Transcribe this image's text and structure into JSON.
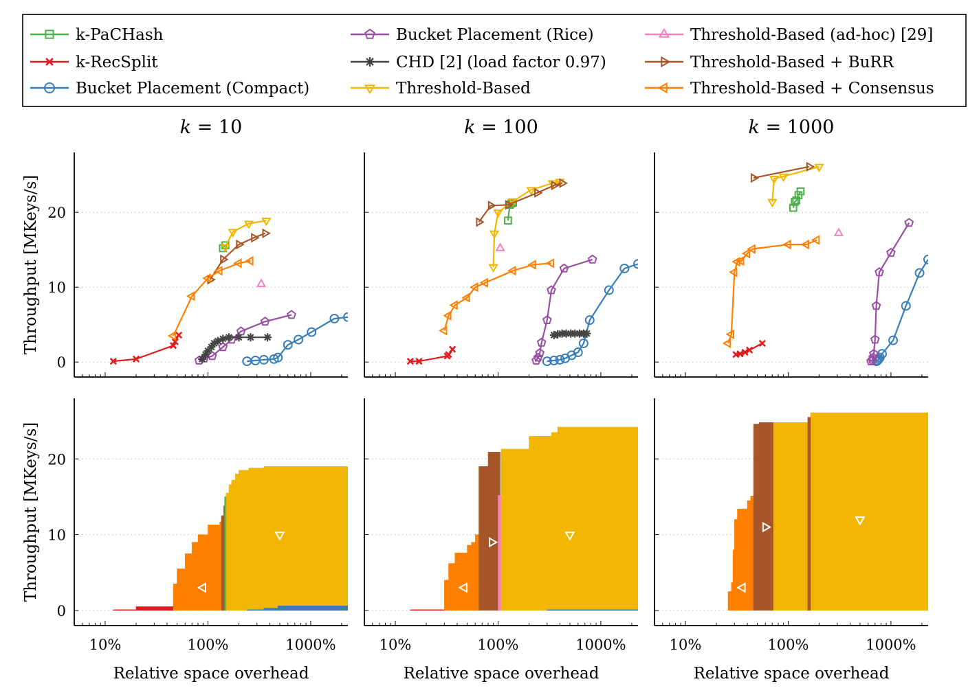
{
  "legend": {
    "entries": [
      {
        "label": "k-PaCHash",
        "marker": "square",
        "color": "#4daf4a"
      },
      {
        "label": "k-RecSplit",
        "marker": "cross",
        "color": "#e41a1c"
      },
      {
        "label": "Bucket Placement (Compact)",
        "marker": "circle",
        "color": "#377eb8"
      },
      {
        "label": "Bucket Placement (Rice)",
        "marker": "pentagon",
        "color": "#984ea3"
      },
      {
        "label": "CHD [2] (load factor 0.97)",
        "marker": "star",
        "color": "#444444"
      },
      {
        "label": "Threshold-Based",
        "marker": "triangle-down",
        "color": "#f2b600"
      },
      {
        "label": "Threshold-Based (ad-hoc) [29]",
        "marker": "triangle-up",
        "color": "#f781bf"
      },
      {
        "label": "Threshold-Based + BuRR",
        "marker": "triangle-right",
        "color": "#a65628"
      },
      {
        "label": "Threshold-Based + Consensus",
        "marker": "triangle-left",
        "color": "#ff7f00"
      }
    ]
  },
  "columns": [
    {
      "k_label": "k",
      "k_value": "= 10"
    },
    {
      "k_label": "k",
      "k_value": "= 100"
    },
    {
      "k_label": "k",
      "k_value": "= 1000"
    }
  ],
  "axes": {
    "ylabel": "Throughput [MKeys/s]",
    "xlabel": "Relative space overhead",
    "xticks": [
      "10%",
      "100%",
      "1000%"
    ],
    "yticks": [
      "0",
      "10",
      "20"
    ],
    "xscale": "log",
    "xlim_percent": [
      5,
      2300
    ],
    "ylim": [
      -2,
      28
    ],
    "grid": "horizontal dotted"
  },
  "chart_data": [
    {
      "type": "line",
      "title": "k = 10",
      "xlabel": "",
      "ylabel": "Throughput [MKeys/s]",
      "series": [
        {
          "name": "k-RecSplit",
          "x": [
            12,
            20,
            46,
            48,
            52
          ],
          "y": [
            0.1,
            0.4,
            2.2,
            2.7,
            3.6
          ]
        },
        {
          "name": "Bucket Placement (Compact)",
          "x": [
            240,
            290,
            350,
            440,
            480,
            600,
            760,
            1020,
            1700,
            2300
          ],
          "y": [
            0.1,
            0.2,
            0.3,
            0.4,
            0.6,
            2.3,
            3.0,
            4.0,
            5.8,
            6.0
          ]
        },
        {
          "name": "Bucket Placement (Rice)",
          "x": [
            82,
            92,
            110,
            140,
            170,
            210,
            360,
            650
          ],
          "y": [
            0.2,
            0.5,
            0.8,
            2.0,
            3.0,
            4.1,
            5.4,
            6.3
          ]
        },
        {
          "name": "CHD [2] (load factor 0.97)",
          "x": [
            88,
            95,
            100,
            108,
            115,
            125,
            140,
            160,
            200,
            260,
            380
          ],
          "y": [
            0.4,
            1.0,
            1.5,
            2.0,
            2.5,
            2.8,
            3.1,
            3.3,
            3.3,
            3.3,
            3.3
          ]
        },
        {
          "name": "k-PaCHash",
          "x": [
            140,
            148
          ],
          "y": [
            15.2,
            15.6
          ]
        },
        {
          "name": "Threshold-Based",
          "x": [
            148,
            175,
            250,
            370
          ],
          "y": [
            15.4,
            17.4,
            18.5,
            18.9
          ]
        },
        {
          "name": "Threshold-Based (ad-hoc) [29]",
          "x": [
            330
          ],
          "y": [
            10.4
          ]
        },
        {
          "name": "Threshold-Based + BuRR",
          "x": [
            105,
            140,
            200,
            280,
            360
          ],
          "y": [
            11.0,
            13.7,
            15.7,
            16.6,
            17.2
          ]
        },
        {
          "name": "Threshold-Based + Consensus",
          "x": [
            46,
            70,
            100,
            130,
            200,
            260
          ],
          "y": [
            3.5,
            8.8,
            11.2,
            12.2,
            13.2,
            13.5
          ]
        }
      ]
    },
    {
      "type": "line",
      "title": "k = 100",
      "xlabel": "",
      "ylabel": "Throughput [MKeys/s]",
      "series": [
        {
          "name": "k-RecSplit",
          "x": [
            14,
            17,
            32,
            33,
            36
          ],
          "y": [
            0.1,
            0.1,
            0.8,
            1.0,
            1.7
          ]
        },
        {
          "name": "Bucket Placement (Compact)",
          "x": [
            300,
            350,
            400,
            450,
            520,
            600,
            680,
            780,
            1200,
            1700,
            2300
          ],
          "y": [
            0.1,
            0.2,
            0.3,
            0.5,
            0.9,
            1.3,
            2.5,
            5.6,
            9.6,
            12.5,
            13.1
          ]
        },
        {
          "name": "Bucket Placement (Rice)",
          "x": [
            235,
            245,
            255,
            265,
            300,
            330,
            440,
            830
          ],
          "y": [
            0.2,
            0.6,
            1.2,
            2.6,
            5.6,
            9.6,
            12.5,
            13.7
          ]
        },
        {
          "name": "CHD [2] (load factor 0.97)",
          "x": [
            350,
            380,
            420,
            460,
            510,
            560,
            620,
            680,
            730
          ],
          "y": [
            3.6,
            3.7,
            3.8,
            3.8,
            3.8,
            3.8,
            3.8,
            3.8,
            3.8
          ]
        },
        {
          "name": "k-PaCHash",
          "x": [
            125,
            130,
            135,
            140
          ],
          "y": [
            18.9,
            21.0,
            21.2,
            21.3
          ]
        },
        {
          "name": "Threshold-Based",
          "x": [
            90,
            92,
            100,
            140,
            210,
            340,
            400
          ],
          "y": [
            12.7,
            17.2,
            20.0,
            21.5,
            23.0,
            23.9,
            24.1
          ]
        },
        {
          "name": "Threshold-Based (ad-hoc) [29]",
          "x": [
            105
          ],
          "y": [
            15.2
          ]
        },
        {
          "name": "Threshold-Based + BuRR",
          "x": [
            65,
            85,
            125,
            240,
            350,
            420
          ],
          "y": [
            18.7,
            20.9,
            21.0,
            22.6,
            23.6,
            23.9
          ]
        },
        {
          "name": "Threshold-Based + Consensus",
          "x": [
            30,
            33,
            38,
            50,
            60,
            75,
            140,
            220,
            330
          ],
          "y": [
            4.2,
            6.2,
            7.6,
            8.6,
            10.0,
            10.6,
            12.2,
            13.0,
            13.2
          ]
        }
      ]
    },
    {
      "type": "line",
      "title": "k = 1000",
      "xlabel": "",
      "ylabel": "Throughput [MKeys/s]",
      "series": [
        {
          "name": "k-RecSplit",
          "x": [
            31,
            34,
            38,
            42,
            56
          ],
          "y": [
            1.0,
            1.1,
            1.3,
            1.6,
            2.5
          ]
        },
        {
          "name": "Bucket Placement (Compact)",
          "x": [
            720,
            740,
            760,
            780,
            820,
            1050,
            1400,
            1900,
            2300
          ],
          "y": [
            0.1,
            0.2,
            0.4,
            0.6,
            1.1,
            2.9,
            7.5,
            11.9,
            13.7
          ]
        },
        {
          "name": "Bucket Placement (Rice)",
          "x": [
            640,
            660,
            670,
            680,
            700,
            720,
            770,
            1000,
            1500
          ],
          "y": [
            0.1,
            0.3,
            0.6,
            1.1,
            3.0,
            7.5,
            12.0,
            14.6,
            18.6
          ]
        },
        {
          "name": "k-PaCHash",
          "x": [
            112,
            116,
            120,
            126,
            132
          ],
          "y": [
            20.6,
            21.4,
            21.6,
            22.3,
            22.8
          ]
        },
        {
          "name": "Threshold-Based",
          "x": [
            70,
            73,
            90,
            200
          ],
          "y": [
            21.4,
            24.5,
            24.8,
            26.1
          ]
        },
        {
          "name": "Threshold-Based (ad-hoc) [29]",
          "x": [
            310
          ],
          "y": [
            17.2
          ]
        },
        {
          "name": "Threshold-Based + BuRR",
          "x": [
            46,
            160
          ],
          "y": [
            24.6,
            26.1
          ]
        },
        {
          "name": "Threshold-Based + Consensus",
          "x": [
            26,
            28,
            30,
            32,
            35,
            40,
            45,
            100,
            150,
            190
          ],
          "y": [
            2.5,
            3.7,
            12.0,
            13.4,
            13.5,
            14.5,
            15.1,
            15.7,
            15.7,
            16.3
          ]
        }
      ]
    },
    {
      "type": "area",
      "title": "",
      "xlabel": "Relative space overhead",
      "ylabel": "Throughput [MKeys/s]",
      "regions": [
        {
          "name": "k-RecSplit",
          "x_start": 12,
          "x_end": 46,
          "steps": [
            [
              12,
              0.1
            ],
            [
              20,
              0.5
            ],
            [
              46,
              0.5
            ]
          ]
        },
        {
          "name": "Threshold-Based + Consensus",
          "x_start": 46,
          "x_end": 148,
          "steps": [
            [
              46,
              3.5
            ],
            [
              50,
              5.5
            ],
            [
              60,
              7.5
            ],
            [
              70,
              9.0
            ],
            [
              80,
              10.0
            ],
            [
              100,
              11.3
            ],
            [
              130,
              11.7
            ],
            [
              148,
              11.7
            ]
          ]
        },
        {
          "name": "Threshold-Based + BuRR",
          "x_start": 135,
          "x_end": 150,
          "steps": [
            [
              135,
              12.5
            ],
            [
              142,
              13.8
            ],
            [
              150,
              13.8
            ]
          ]
        },
        {
          "name": "k-PaCHash",
          "x_start": 145,
          "x_end": 152,
          "steps": [
            [
              145,
              15.0
            ],
            [
              152,
              15.5
            ]
          ]
        },
        {
          "name": "Threshold-Based",
          "x_start": 150,
          "x_end": 2300,
          "steps": [
            [
              150,
              15.5
            ],
            [
              160,
              16.6
            ],
            [
              170,
              17.2
            ],
            [
              185,
              18.0
            ],
            [
              200,
              18.5
            ],
            [
              250,
              18.8
            ],
            [
              350,
              19.0
            ],
            [
              2300,
              19.0
            ]
          ]
        },
        {
          "name": "Bucket Placement (Compact)",
          "x_start": 240,
          "x_end": 2300,
          "steps": [
            [
              240,
              0.1
            ],
            [
              350,
              0.3
            ],
            [
              480,
              0.6
            ],
            [
              2300,
              0.6
            ]
          ]
        }
      ]
    },
    {
      "type": "area",
      "title": "",
      "xlabel": "Relative space overhead",
      "ylabel": "Throughput [MKeys/s]",
      "regions": [
        {
          "name": "k-RecSplit",
          "x_start": 14,
          "x_end": 30,
          "steps": [
            [
              14,
              0.1
            ],
            [
              30,
              0.1
            ]
          ]
        },
        {
          "name": "Threshold-Based + Consensus",
          "x_start": 30,
          "x_end": 65,
          "steps": [
            [
              30,
              4.0
            ],
            [
              33,
              6.2
            ],
            [
              38,
              7.6
            ],
            [
              50,
              8.6
            ],
            [
              55,
              9.0
            ],
            [
              60,
              10.0
            ],
            [
              65,
              10.0
            ]
          ]
        },
        {
          "name": "Threshold-Based + BuRR",
          "x_start": 65,
          "x_end": 105,
          "steps": [
            [
              65,
              19.0
            ],
            [
              80,
              20.9
            ],
            [
              105,
              20.9
            ]
          ]
        },
        {
          "name": "Threshold-Based (ad-hoc) [29]",
          "x_start": 100,
          "x_end": 107,
          "steps": [
            [
              100,
              15.2
            ],
            [
              107,
              15.2
            ]
          ]
        },
        {
          "name": "Threshold-Based",
          "x_start": 107,
          "x_end": 2300,
          "steps": [
            [
              107,
              21.3
            ],
            [
              200,
              23.0
            ],
            [
              330,
              23.5
            ],
            [
              380,
              24.2
            ],
            [
              2300,
              24.2
            ]
          ]
        },
        {
          "name": "Bucket Placement (Compact)",
          "x_start": 300,
          "x_end": 2300,
          "steps": [
            [
              300,
              0.1
            ],
            [
              2300,
              0.1
            ]
          ]
        }
      ]
    },
    {
      "type": "area",
      "title": "",
      "xlabel": "Relative space overhead",
      "ylabel": "Throughput [MKeys/s]",
      "regions": [
        {
          "name": "Threshold-Based + Consensus",
          "x_start": 26,
          "x_end": 46,
          "steps": [
            [
              26,
              2.5
            ],
            [
              28,
              3.7
            ],
            [
              29,
              8.0
            ],
            [
              30,
              12.0
            ],
            [
              32,
              13.4
            ],
            [
              40,
              14.5
            ],
            [
              43,
              15.1
            ],
            [
              46,
              15.1
            ]
          ]
        },
        {
          "name": "Threshold-Based + BuRR",
          "x_start": 46,
          "x_end": 72,
          "steps": [
            [
              46,
              24.6
            ],
            [
              52,
              24.8
            ],
            [
              72,
              24.8
            ]
          ]
        },
        {
          "name": "Threshold-Based",
          "x_start": 72,
          "x_end": 2300,
          "steps": [
            [
              72,
              24.8
            ],
            [
              165,
              26.1
            ],
            [
              2300,
              26.1
            ]
          ]
        },
        {
          "name": "Threshold-Based + BuRR",
          "x_start": 155,
          "x_end": 165,
          "steps": [
            [
              155,
              25.5
            ],
            [
              165,
              25.5
            ]
          ]
        }
      ]
    }
  ]
}
